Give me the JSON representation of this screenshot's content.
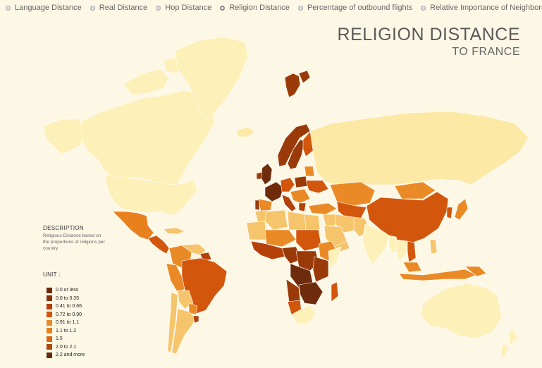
{
  "nav": {
    "options": [
      {
        "label": "Language Distance",
        "selected": false
      },
      {
        "label": "Real Distance",
        "selected": false
      },
      {
        "label": "Hop Distance",
        "selected": false
      },
      {
        "label": "Religion Distance",
        "selected": true
      },
      {
        "label": "Percentage of outbound flights",
        "selected": false
      },
      {
        "label": "Relative Importance of Neighbors",
        "selected": false
      }
    ]
  },
  "title": "RELIGION DISTANCE",
  "subtitle": "TO FRANCE",
  "description": {
    "heading": "DESCRIPTION",
    "text": "Religious Distance based on the proportions of religions per country"
  },
  "unit_heading": "UNIT :",
  "legend": [
    {
      "label": "0.0 or less",
      "color": "#6b2a08"
    },
    {
      "label": "0.0 to 0.35",
      "color": "#8a3006"
    },
    {
      "label": "0.41 to 0.66",
      "color": "#b4410a"
    },
    {
      "label": "0.72 to 0.90",
      "color": "#d0560e"
    },
    {
      "label": "0.91 to 1.1",
      "color": "#e78e2e"
    },
    {
      "label": "1.1 to 1.2",
      "color": "#e9801e"
    },
    {
      "label": "1.5",
      "color": "#d86712"
    },
    {
      "label": "2.0 to 2.1",
      "color": "#b04a0c"
    },
    {
      "label": "2.2 and more",
      "color": "#6a2a0c"
    }
  ],
  "colors": {
    "background": "#fdf7e6",
    "ocean_border": "#ffffff",
    "land_light": "#fdf0b8",
    "land_pale": "#fde9a6",
    "land_mid": "#f6c46a",
    "land_orange": "#ea8a26",
    "land_dark_orange": "#d2560c",
    "land_brown": "#9a3a08",
    "land_darkest": "#6e2c0c"
  }
}
